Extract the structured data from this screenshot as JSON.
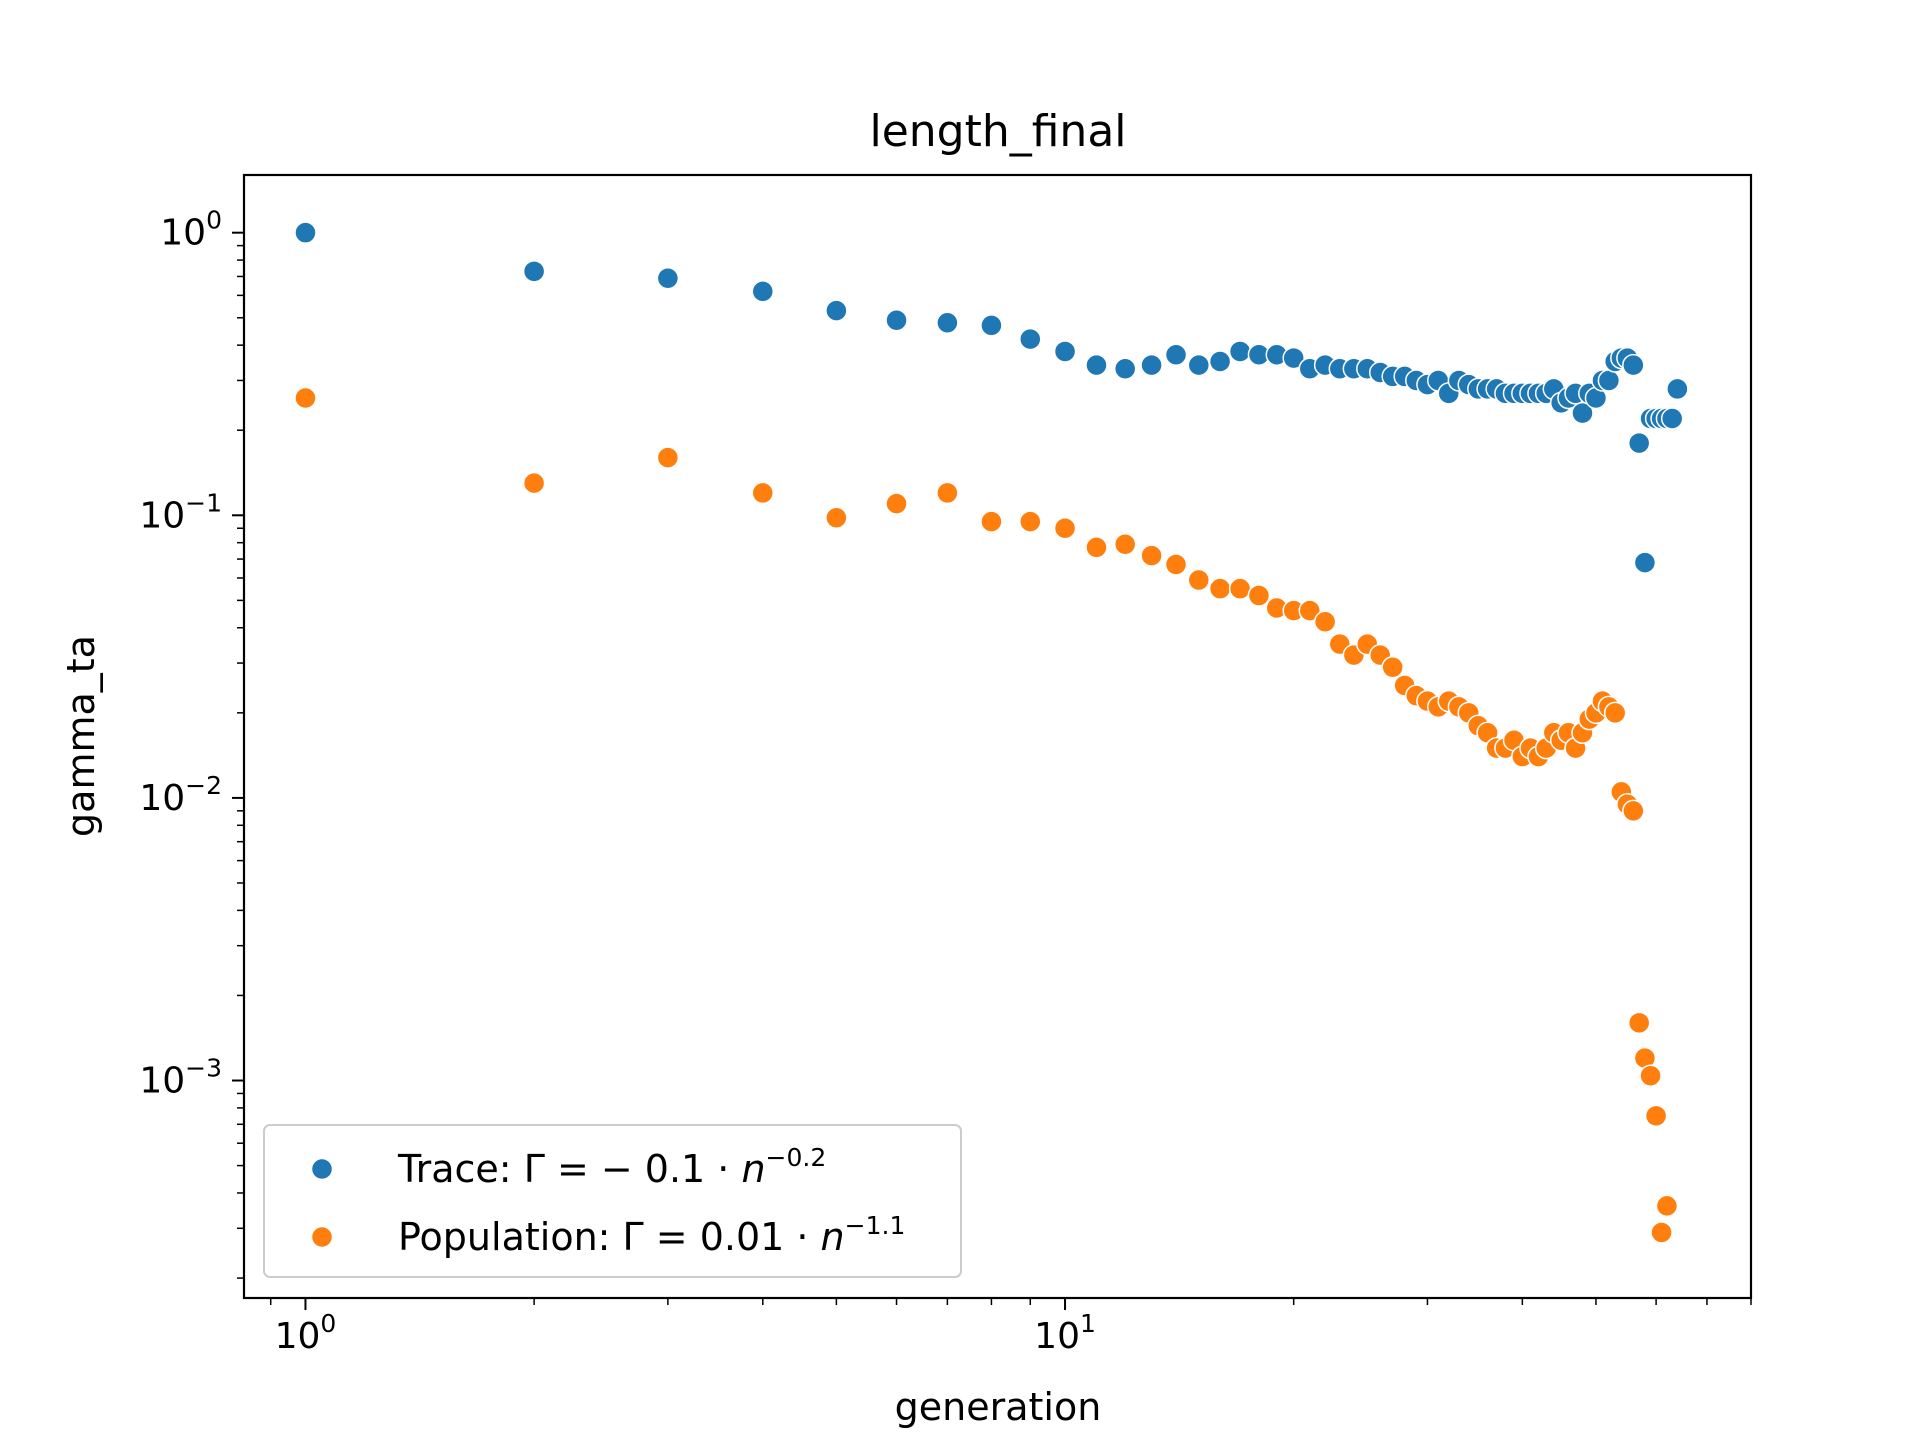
{
  "chart_data": {
    "type": "scatter",
    "title": "length_final",
    "xlabel": "generation",
    "ylabel": "gamma_ta",
    "xscale": "log",
    "yscale": "log",
    "xlim": [
      0.83,
      80
    ],
    "ylim": [
      0.00017,
      1.6
    ],
    "grid": false,
    "legend_position": "lower-left",
    "x_tick_labels": [
      {
        "value": 1,
        "base": "10",
        "exp": "0"
      },
      {
        "value": 10,
        "base": "10",
        "exp": "1"
      }
    ],
    "y_tick_labels": [
      {
        "value": 1,
        "base": "10",
        "exp": "0"
      },
      {
        "value": 0.1,
        "base": "10",
        "exp": "−1"
      },
      {
        "value": 0.01,
        "base": "10",
        "exp": "−2"
      },
      {
        "value": 0.001,
        "base": "10",
        "exp": "−3"
      }
    ],
    "series": [
      {
        "name": "Trace: Γ = −0.1 · n^−0.2",
        "legend": {
          "prefix": "Trace: Γ = − 0.1 · ",
          "var": "n",
          "exp": "−0.2"
        },
        "color": "#1f77b4",
        "x": [
          1,
          2,
          3,
          4,
          5,
          6,
          7,
          8,
          9,
          10,
          11,
          12,
          13,
          14,
          15,
          16,
          17,
          18,
          19,
          20,
          21,
          22,
          23,
          24,
          25,
          26,
          27,
          28,
          29,
          30,
          31,
          32,
          33,
          34,
          35,
          36,
          37,
          38,
          39,
          40,
          41,
          42,
          43,
          44,
          45,
          46,
          47,
          48,
          49,
          50,
          51,
          52,
          53,
          54,
          55,
          56,
          57,
          58,
          59,
          60,
          61,
          62,
          63,
          64
        ],
        "y": [
          1.0,
          0.73,
          0.69,
          0.62,
          0.53,
          0.49,
          0.48,
          0.47,
          0.42,
          0.38,
          0.34,
          0.33,
          0.34,
          0.37,
          0.34,
          0.35,
          0.38,
          0.37,
          0.37,
          0.36,
          0.33,
          0.34,
          0.33,
          0.33,
          0.33,
          0.32,
          0.31,
          0.31,
          0.3,
          0.29,
          0.3,
          0.27,
          0.3,
          0.29,
          0.28,
          0.28,
          0.28,
          0.27,
          0.27,
          0.27,
          0.27,
          0.27,
          0.27,
          0.28,
          0.25,
          0.26,
          0.27,
          0.23,
          0.27,
          0.26,
          0.3,
          0.3,
          0.35,
          0.36,
          0.36,
          0.34,
          0.18,
          0.068,
          0.22,
          0.22,
          0.22,
          0.22,
          0.22,
          0.28
        ]
      },
      {
        "name": "Population: Γ = 0.01 · n^−1.1",
        "legend": {
          "prefix": "Population: Γ = 0.01 · ",
          "var": "n",
          "exp": "−1.1"
        },
        "color": "#ff7f0e",
        "x": [
          1,
          2,
          3,
          4,
          5,
          6,
          7,
          8,
          9,
          10,
          11,
          12,
          13,
          14,
          15,
          16,
          17,
          18,
          19,
          20,
          21,
          22,
          23,
          24,
          25,
          26,
          27,
          28,
          29,
          30,
          31,
          32,
          33,
          34,
          35,
          36,
          37,
          38,
          39,
          40,
          41,
          42,
          43,
          44,
          45,
          46,
          47,
          48,
          49,
          50,
          51,
          52,
          53,
          54,
          55,
          56,
          57,
          58,
          59,
          60,
          61,
          62
        ],
        "y": [
          0.26,
          0.13,
          0.16,
          0.12,
          0.098,
          0.11,
          0.12,
          0.095,
          0.095,
          0.09,
          0.077,
          0.079,
          0.072,
          0.067,
          0.059,
          0.055,
          0.055,
          0.052,
          0.047,
          0.046,
          0.046,
          0.042,
          0.035,
          0.032,
          0.035,
          0.032,
          0.029,
          0.025,
          0.023,
          0.022,
          0.021,
          0.022,
          0.021,
          0.02,
          0.018,
          0.017,
          0.015,
          0.015,
          0.016,
          0.014,
          0.015,
          0.014,
          0.015,
          0.017,
          0.016,
          0.017,
          0.015,
          0.017,
          0.019,
          0.02,
          0.022,
          0.021,
          0.02,
          0.0105,
          0.0095,
          0.009,
          0.0016,
          0.0012,
          0.00104,
          0.00075,
          0.00029,
          0.00036
        ]
      }
    ]
  }
}
